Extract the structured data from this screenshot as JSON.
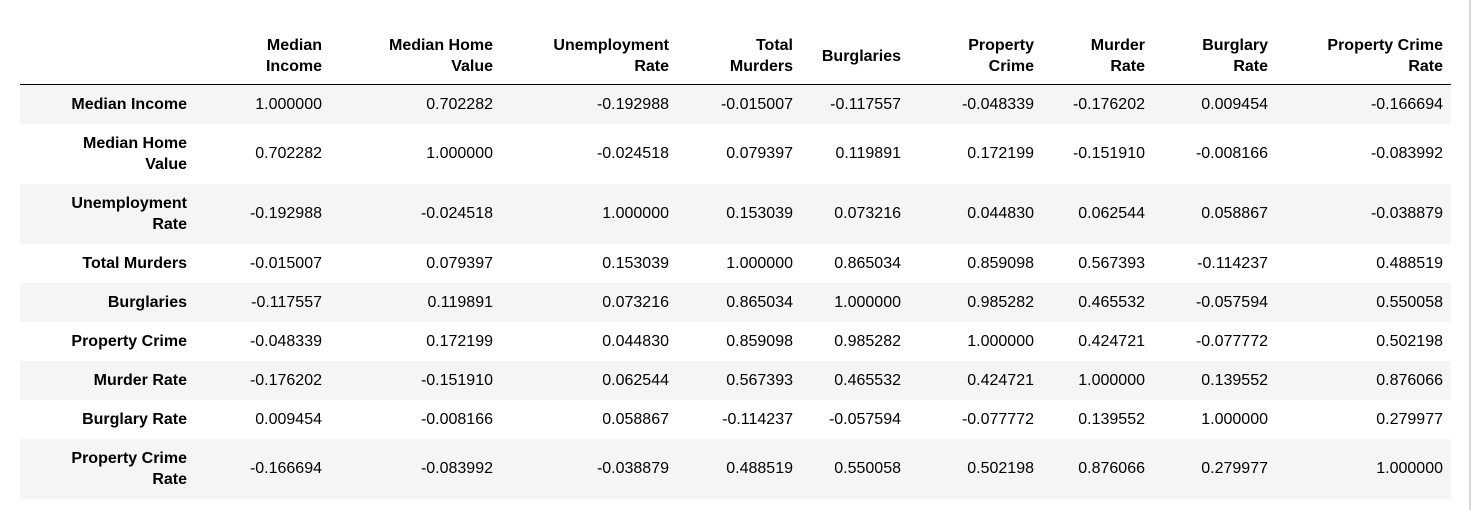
{
  "table": {
    "corner": "",
    "columns": [
      [
        "Median",
        "Income"
      ],
      [
        "Median Home",
        "Value"
      ],
      [
        "Unemployment",
        "Rate"
      ],
      [
        "Total",
        "Murders"
      ],
      [
        "Burglaries"
      ],
      [
        "Property",
        "Crime"
      ],
      [
        "Murder",
        "Rate"
      ],
      [
        "Burglary",
        "Rate"
      ],
      [
        "Property Crime",
        "Rate"
      ]
    ],
    "rows": [
      {
        "label": [
          "Median Income"
        ],
        "values": [
          "1.000000",
          "0.702282",
          "-0.192988",
          "-0.015007",
          "-0.117557",
          "-0.048339",
          "-0.176202",
          "0.009454",
          "-0.166694"
        ]
      },
      {
        "label": [
          "Median Home",
          "Value"
        ],
        "values": [
          "0.702282",
          "1.000000",
          "-0.024518",
          "0.079397",
          "0.119891",
          "0.172199",
          "-0.151910",
          "-0.008166",
          "-0.083992"
        ]
      },
      {
        "label": [
          "Unemployment",
          "Rate"
        ],
        "values": [
          "-0.192988",
          "-0.024518",
          "1.000000",
          "0.153039",
          "0.073216",
          "0.044830",
          "0.062544",
          "0.058867",
          "-0.038879"
        ]
      },
      {
        "label": [
          "Total Murders"
        ],
        "values": [
          "-0.015007",
          "0.079397",
          "0.153039",
          "1.000000",
          "0.865034",
          "0.859098",
          "0.567393",
          "-0.114237",
          "0.488519"
        ]
      },
      {
        "label": [
          "Burglaries"
        ],
        "values": [
          "-0.117557",
          "0.119891",
          "0.073216",
          "0.865034",
          "1.000000",
          "0.985282",
          "0.465532",
          "-0.057594",
          "0.550058"
        ]
      },
      {
        "label": [
          "Property Crime"
        ],
        "values": [
          "-0.048339",
          "0.172199",
          "0.044830",
          "0.859098",
          "0.985282",
          "1.000000",
          "0.424721",
          "-0.077772",
          "0.502198"
        ]
      },
      {
        "label": [
          "Murder Rate"
        ],
        "values": [
          "-0.176202",
          "-0.151910",
          "0.062544",
          "0.567393",
          "0.465532",
          "0.424721",
          "1.000000",
          "0.139552",
          "0.876066"
        ]
      },
      {
        "label": [
          "Burglary Rate"
        ],
        "values": [
          "0.009454",
          "-0.008166",
          "0.058867",
          "-0.114237",
          "-0.057594",
          "-0.077772",
          "0.139552",
          "1.000000",
          "0.279977"
        ]
      },
      {
        "label": [
          "Property Crime",
          "Rate"
        ],
        "values": [
          "-0.166694",
          "-0.083992",
          "-0.038879",
          "0.488519",
          "0.550058",
          "0.502198",
          "0.876066",
          "0.279977",
          "1.000000"
        ]
      }
    ]
  }
}
